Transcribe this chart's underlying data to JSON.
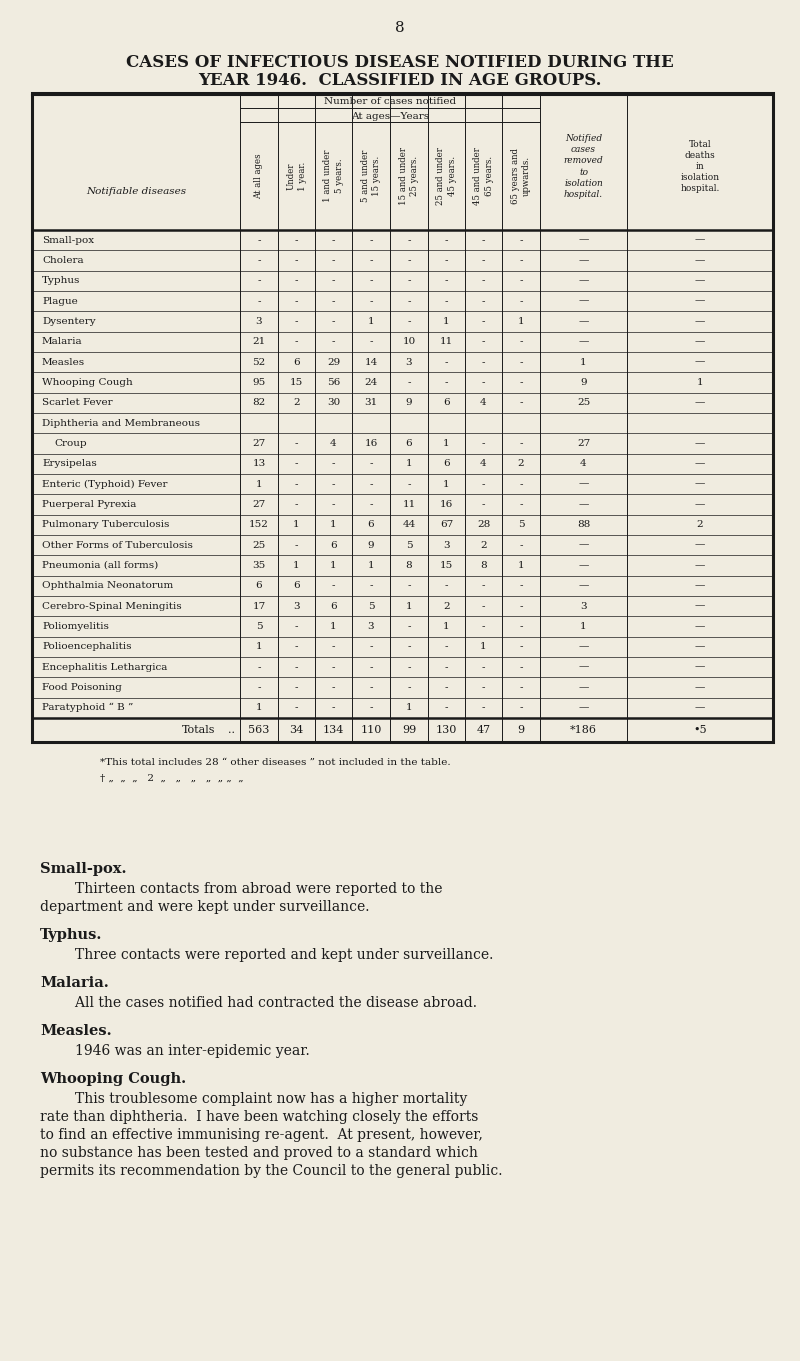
{
  "page_number": "8",
  "main_title_line1": "CASES OF INFECTIOUS DISEASE NOTIFIED DURING THE",
  "main_title_line2": "YEAR 1946.  CLASSIFIED IN AGE GROUPS.",
  "background_color": "#f0ece0",
  "text_color": "#1a1a1a",
  "col_headers_level1": "Number of cases notified",
  "col_headers_level2": "At ages—Years",
  "row_label_col": "Notifiable diseases",
  "diseases": [
    "Small-pox",
    "Cholera",
    "Typhus",
    "Plague",
    "Dysentery",
    "Malaria",
    "Measles",
    "Whooping Cough",
    "Scarlet Fever",
    "Diphtheria and Membraneous",
    "  Croup",
    "Erysipelas",
    "Enteric (Typhoid) Fever",
    "Puerperal Pyrexia",
    "Pulmonary Tuberculosis",
    "Other Forms of Tuberculosis",
    "Pneumonia (all forms)",
    "Ophthalmia Neonatorum",
    "Cerebro-Spinal Meningitis",
    "Poliomyelitis",
    "Polioencephalitis",
    "Encephalitis Lethargica",
    "Food Poisoning",
    "Paratyphoid “ B ”"
  ],
  "disease_data_index": [
    0,
    1,
    2,
    3,
    4,
    5,
    6,
    7,
    8,
    9,
    9,
    10,
    11,
    12,
    13,
    14,
    15,
    16,
    17,
    18,
    19,
    20,
    21,
    22
  ],
  "data": [
    [
      "-",
      "-",
      "-",
      "-",
      "-",
      "-",
      "-",
      "-",
      "—",
      "—"
    ],
    [
      "-",
      "-",
      "-",
      "-",
      "-",
      "-",
      "-",
      "-",
      "—",
      "—"
    ],
    [
      "-",
      "-",
      "-",
      "-",
      "-",
      "-",
      "-",
      "-",
      "—",
      "—"
    ],
    [
      "-",
      "-",
      "-",
      "-",
      "-",
      "-",
      "-",
      "-",
      "—",
      "—"
    ],
    [
      "3",
      "-",
      "-",
      "1",
      "-",
      "1",
      "-",
      "1",
      "—",
      "—"
    ],
    [
      "21",
      "-",
      "-",
      "-",
      "10",
      "11",
      "-",
      "-",
      "—",
      "—"
    ],
    [
      "52",
      "6",
      "29",
      "14",
      "3",
      "-",
      "-",
      "-",
      "1",
      "—"
    ],
    [
      "95",
      "15",
      "56",
      "24",
      "-",
      "-",
      "-",
      "-",
      "9",
      "1"
    ],
    [
      "82",
      "2",
      "30",
      "31",
      "9",
      "6",
      "4",
      "-",
      "25",
      "—"
    ],
    [
      "27",
      "-",
      "4",
      "16",
      "6",
      "1",
      "-",
      "-",
      "27",
      "—"
    ],
    [
      "13",
      "-",
      "-",
      "-",
      "1",
      "6",
      "4",
      "2",
      "4",
      "—"
    ],
    [
      "1",
      "-",
      "-",
      "-",
      "-",
      "1",
      "-",
      "-",
      "—",
      "—"
    ],
    [
      "27",
      "-",
      "-",
      "-",
      "11",
      "16",
      "-",
      "-",
      "—",
      "—"
    ],
    [
      "152",
      "1",
      "1",
      "6",
      "44",
      "67",
      "28",
      "5",
      "88",
      "2"
    ],
    [
      "25",
      "-",
      "6",
      "9",
      "5",
      "3",
      "2",
      "-",
      "—",
      "—"
    ],
    [
      "35",
      "1",
      "1",
      "1",
      "8",
      "15",
      "8",
      "1",
      "—",
      "—"
    ],
    [
      "6",
      "6",
      "-",
      "-",
      "-",
      "-",
      "-",
      "-",
      "—",
      "—"
    ],
    [
      "17",
      "3",
      "6",
      "5",
      "1",
      "2",
      "-",
      "-",
      "3",
      "—"
    ],
    [
      "5",
      "-",
      "1",
      "3",
      "-",
      "1",
      "-",
      "-",
      "1",
      "—"
    ],
    [
      "1",
      "-",
      "-",
      "-",
      "-",
      "-",
      "1",
      "-",
      "—",
      "—"
    ],
    [
      "-",
      "-",
      "-",
      "-",
      "-",
      "-",
      "-",
      "-",
      "—",
      "—"
    ],
    [
      "-",
      "-",
      "-",
      "-",
      "-",
      "-",
      "-",
      "-",
      "—",
      "—"
    ],
    [
      "1",
      "-",
      "-",
      "-",
      "1",
      "-",
      "-",
      "-",
      "—",
      "—"
    ]
  ],
  "totals_label": "Totals",
  "totals_dots": "..",
  "totals_data": [
    "563",
    "34",
    "134",
    "110",
    "99",
    "130",
    "47",
    "9",
    "*186",
    "•5"
  ],
  "footnote1": "*This total includes 28 “ other diseases ” not included in the table.",
  "footnote2": "† „  „  „   2  „   „   „   „  „ „  „",
  "section_headers": [
    "Small-pox.",
    "Typhus.",
    "Malaria.",
    "Measles.",
    "Whooping Cough."
  ],
  "section_bodies": [
    "        Thirteen contacts from abroad were reported to the\ndepartment and were kept under surveillance.",
    "        Three contacts were reported and kept under surveillance.",
    "        All the cases notified had contracted the disease abroad.",
    "        1946 was an inter-epidemic year.",
    "        This troublesome complaint now has a higher mortality\nrate than diphtheria.  I have been watching closely the efforts\nto find an effective immunising re-agent.  At present, however,\nno substance has been tested and proved to a standard which\npermits its recommendation by the Council to the general public."
  ]
}
